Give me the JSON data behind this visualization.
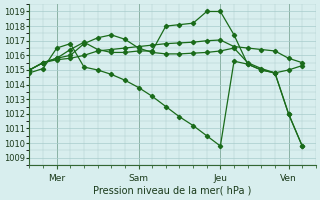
{
  "background_color": "#d8eeee",
  "grid_color": "#a8cccc",
  "line_color": "#1a6b1a",
  "xlabel": "Pression niveau de la mer( hPa )",
  "yticks": [
    1009,
    1010,
    1011,
    1012,
    1013,
    1014,
    1015,
    1016,
    1017,
    1018,
    1019
  ],
  "ylim": [
    1008.5,
    1019.5
  ],
  "xlim": [
    0,
    21
  ],
  "vlines_x": [
    2,
    8,
    14,
    19
  ],
  "vlines_labels": [
    "Mer",
    "Sam",
    "Jeu",
    "Ven"
  ],
  "series": [
    [
      1015.0,
      1015.5,
      1015.7,
      1015.8,
      1016.0,
      1016.3,
      1016.4,
      1016.5,
      1016.6,
      1016.7,
      1016.8,
      1016.85,
      1016.9,
      1017.0,
      1017.05,
      1016.6,
      1016.5,
      1016.4,
      1016.3,
      1015.8,
      1015.5
    ],
    [
      1015.0,
      1015.5,
      1015.8,
      1016.0,
      1016.8,
      1017.2,
      1017.4,
      1017.1,
      1016.5,
      1016.2,
      1016.1,
      1016.1,
      1016.15,
      1016.2,
      1016.3,
      1016.5,
      1015.5,
      1015.1,
      1014.8,
      1015.0,
      1015.3
    ],
    [
      1015.0,
      1015.5,
      1015.8,
      1016.4,
      1016.9,
      1016.4,
      1016.2,
      1016.2,
      1016.3,
      1016.3,
      1018.0,
      1018.1,
      1018.2,
      1019.0,
      1019.0,
      1017.4,
      1015.4,
      1015.0,
      1014.8,
      1012.0,
      1009.8
    ],
    [
      1014.8,
      1015.1,
      1016.5,
      1016.8,
      1015.2,
      1015.0,
      1014.7,
      1014.3,
      1013.8,
      1013.2,
      1012.5,
      1011.8,
      1011.2,
      1010.5,
      1009.8,
      1015.6,
      1015.4,
      1015.0,
      1014.8,
      1012.0,
      1009.8
    ]
  ]
}
